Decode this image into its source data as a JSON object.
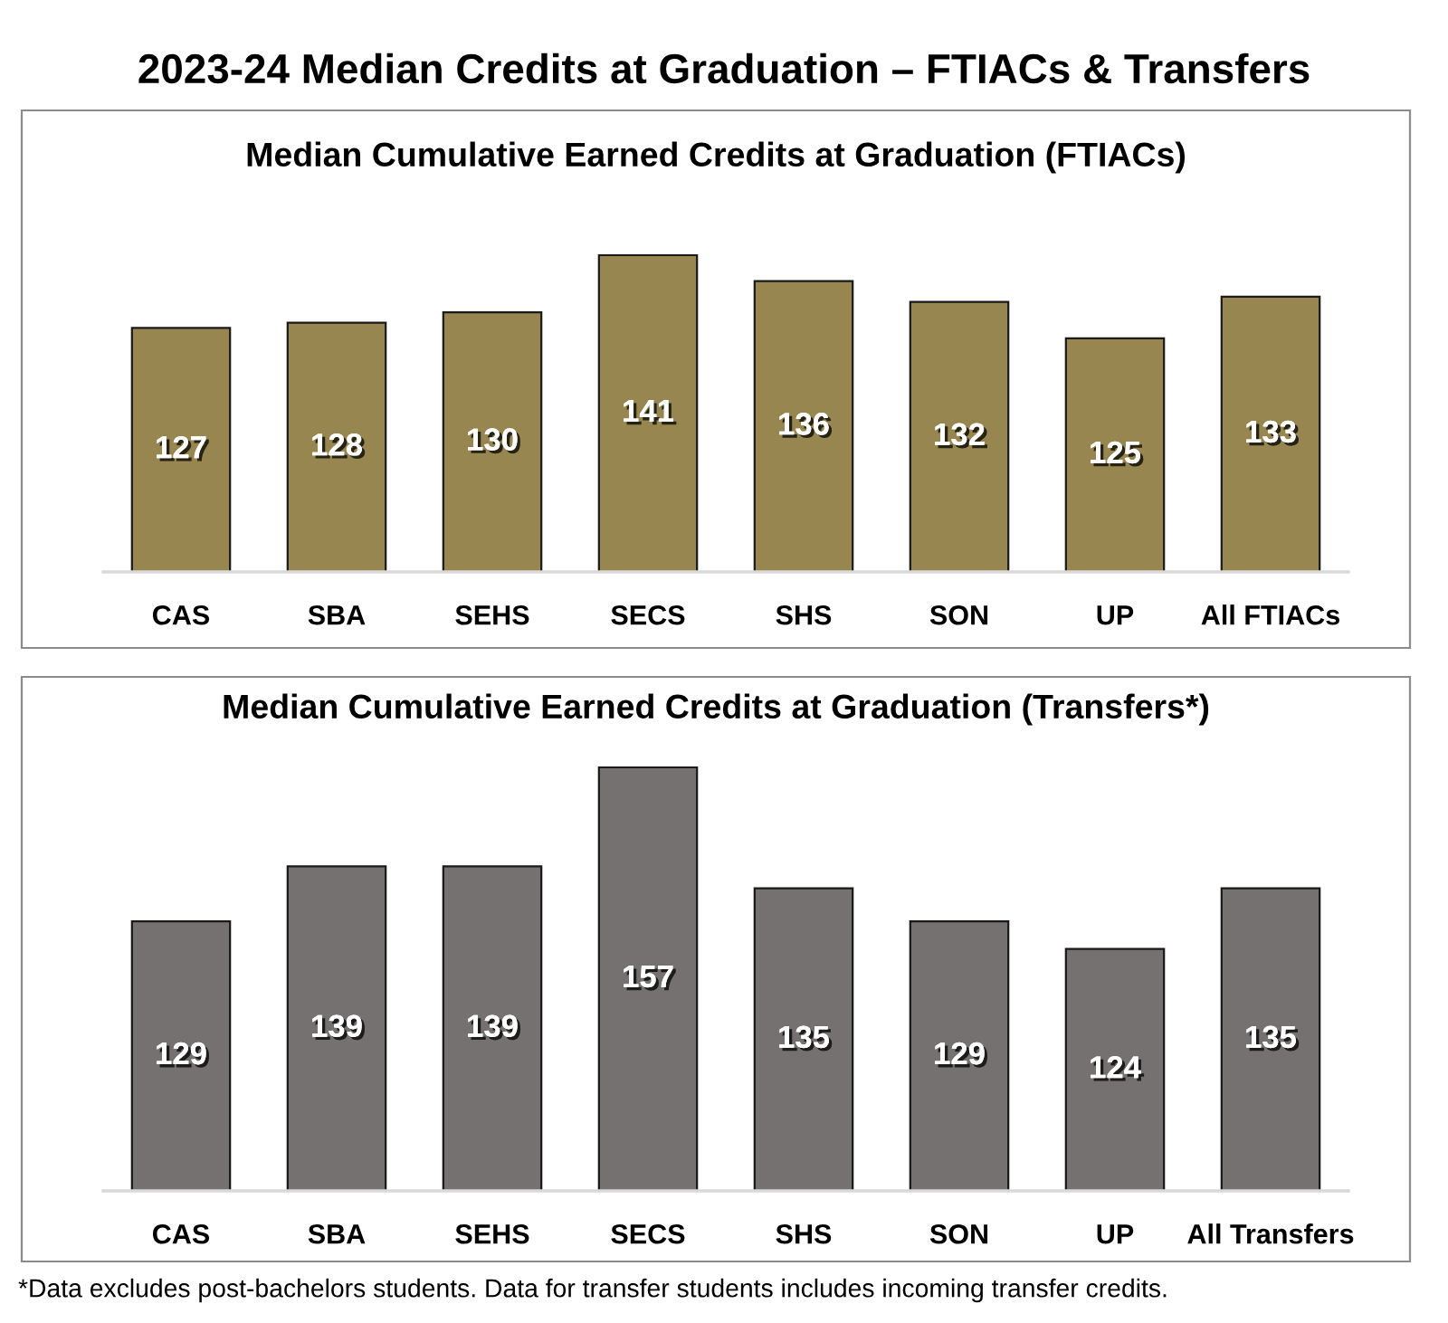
{
  "chart_data": [
    {
      "type": "bar",
      "title": "2023-24 Median Credits at Graduation – FTIACs & Transfers",
      "subtitle": "Median Cumulative Earned Credits at Graduation (FTIACs)",
      "categories": [
        "CAS",
        "SBA",
        "SEHS",
        "SECS",
        "SHS",
        "SON",
        "UP",
        "All FTIACs"
      ],
      "values": [
        127,
        128,
        130,
        141,
        136,
        132,
        125,
        133
      ],
      "color": "#988650",
      "ylim": [
        80,
        141
      ],
      "data_labels": true,
      "tick_labels": "x"
    },
    {
      "type": "bar",
      "title": "Median Cumulative Earned Credits at Graduation (Transfers*)",
      "categories": [
        "CAS",
        "SBA",
        "SEHS",
        "SECS",
        "SHS",
        "SON",
        "UP",
        "All Transfers"
      ],
      "values": [
        129,
        139,
        139,
        157,
        135,
        129,
        124,
        135
      ],
      "color": "#767171",
      "ylim": [
        80,
        157
      ],
      "data_labels": true,
      "tick_labels": "x",
      "annotations": [
        "*Data excludes post-bachelors students. Data for transfer students includes incoming transfer credits."
      ]
    }
  ]
}
